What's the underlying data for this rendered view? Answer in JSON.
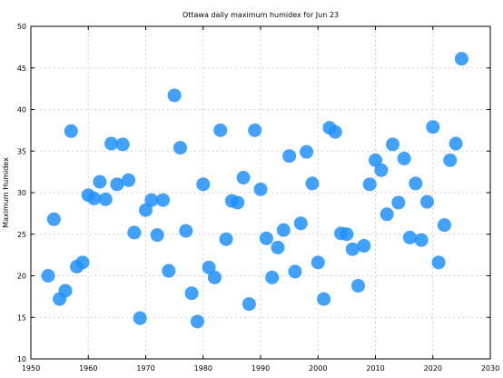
{
  "chart_data": {
    "type": "scatter",
    "title": "Ottawa daily maximum humidex for Jun 23",
    "xlabel": "",
    "ylabel": "Maximum Humidex",
    "xlim": [
      1950,
      2030
    ],
    "ylim": [
      10,
      50
    ],
    "xticks": [
      1950,
      1960,
      1970,
      1980,
      1990,
      2000,
      2010,
      2020,
      2030
    ],
    "yticks": [
      10,
      15,
      20,
      25,
      30,
      35,
      40,
      45,
      50
    ],
    "grid": true,
    "color": "#1e90ff",
    "points": [
      [
        1953,
        20.0
      ],
      [
        1954,
        26.8
      ],
      [
        1955,
        17.2
      ],
      [
        1956,
        18.2
      ],
      [
        1957,
        37.4
      ],
      [
        1958,
        21.1
      ],
      [
        1959,
        21.6
      ],
      [
        1960,
        29.7
      ],
      [
        1961,
        29.3
      ],
      [
        1962,
        31.3
      ],
      [
        1963,
        29.2
      ],
      [
        1964,
        35.9
      ],
      [
        1965,
        31.0
      ],
      [
        1966,
        35.8
      ],
      [
        1967,
        31.5
      ],
      [
        1968,
        25.2
      ],
      [
        1969,
        14.9
      ],
      [
        1970,
        27.9
      ],
      [
        1971,
        29.1
      ],
      [
        1972,
        24.9
      ],
      [
        1973,
        29.1
      ],
      [
        1974,
        20.6
      ],
      [
        1975,
        41.7
      ],
      [
        1976,
        35.4
      ],
      [
        1977,
        25.4
      ],
      [
        1978,
        17.9
      ],
      [
        1979,
        14.5
      ],
      [
        1980,
        31.0
      ],
      [
        1981,
        21.0
      ],
      [
        1982,
        19.8
      ],
      [
        1983,
        37.5
      ],
      [
        1984,
        24.4
      ],
      [
        1985,
        29.0
      ],
      [
        1986,
        28.8
      ],
      [
        1987,
        31.8
      ],
      [
        1988,
        16.6
      ],
      [
        1989,
        37.5
      ],
      [
        1990,
        30.4
      ],
      [
        1991,
        24.5
      ],
      [
        1992,
        19.8
      ],
      [
        1993,
        23.4
      ],
      [
        1994,
        25.5
      ],
      [
        1995,
        34.4
      ],
      [
        1996,
        20.5
      ],
      [
        1997,
        26.3
      ],
      [
        1998,
        34.9
      ],
      [
        1999,
        31.1
      ],
      [
        2000,
        21.6
      ],
      [
        2001,
        17.2
      ],
      [
        2002,
        37.8
      ],
      [
        2003,
        37.3
      ],
      [
        2004,
        25.1
      ],
      [
        2005,
        25.0
      ],
      [
        2006,
        23.2
      ],
      [
        2007,
        18.8
      ],
      [
        2008,
        23.6
      ],
      [
        2009,
        31.0
      ],
      [
        2010,
        33.9
      ],
      [
        2011,
        32.7
      ],
      [
        2012,
        27.4
      ],
      [
        2013,
        35.8
      ],
      [
        2014,
        28.8
      ],
      [
        2015,
        34.1
      ],
      [
        2016,
        24.6
      ],
      [
        2017,
        31.1
      ],
      [
        2018,
        24.3
      ],
      [
        2019,
        28.9
      ],
      [
        2020,
        37.9
      ],
      [
        2021,
        21.6
      ],
      [
        2022,
        26.1
      ],
      [
        2023,
        33.9
      ],
      [
        2024,
        35.9
      ],
      [
        2025,
        46.1
      ]
    ]
  }
}
